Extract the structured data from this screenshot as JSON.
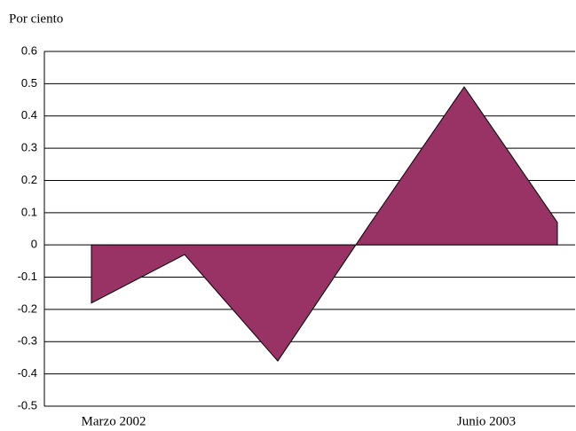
{
  "chart_data": {
    "type": "area",
    "y_label": "Por ciento",
    "categories": [
      "Marzo 2002",
      null,
      null,
      null,
      "Junio 2003",
      null
    ],
    "series": [
      {
        "color": "#993366",
        "values": [
          -0.18,
          -0.03,
          -0.36,
          0.07,
          0.49,
          0.07
        ]
      }
    ],
    "ylim": [
      -0.5,
      0.6
    ],
    "yticks": [
      -0.5,
      -0.4,
      -0.3,
      -0.2,
      -0.1,
      0,
      0.1,
      0.2,
      0.3,
      0.4,
      0.5,
      0.6
    ],
    "grid": true
  }
}
